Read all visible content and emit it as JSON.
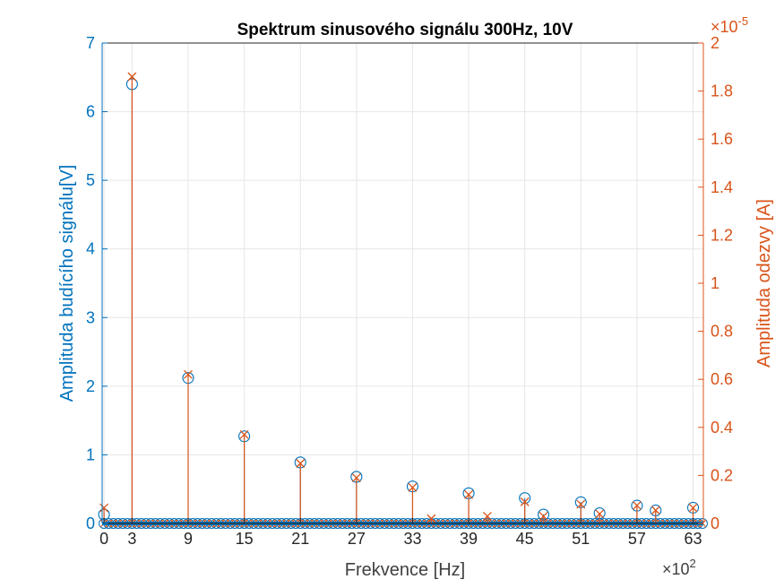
{
  "chart_data": {
    "type": "stem",
    "title": "Spektrum sinusového signálu 300Hz, 10V",
    "xlabel": "Frekvence [Hz]",
    "x_multiplier": {
      "base": "×10",
      "exponent": "2"
    },
    "xlim": [
      -0.2,
      64.1
    ],
    "xticks": [
      0,
      3,
      9,
      15,
      21,
      27,
      33,
      39,
      45,
      51,
      57,
      63
    ],
    "grid": true,
    "left_axis": {
      "label": "Amplituda budícího signálu[V]",
      "color": "#0072BD",
      "ylim": [
        0,
        7
      ],
      "ticks": [
        0,
        1,
        2,
        3,
        4,
        5,
        6,
        7
      ]
    },
    "right_axis": {
      "label": "Amplituda odezvy [A]",
      "color": "#D95319",
      "multiplier": {
        "base": "×10",
        "exponent": "-5"
      },
      "ylim": [
        0,
        2
      ],
      "ticks": [
        0,
        0.2,
        0.4,
        0.6,
        0.8,
        1,
        1.2,
        1.4,
        1.6,
        1.8,
        2
      ],
      "tick_labels": [
        "0",
        "0.2",
        "0.4",
        "0.6",
        "0.8",
        "1",
        "1.2",
        "1.4",
        "1.6",
        "1.8",
        "2"
      ]
    },
    "series": [
      {
        "axis": "left",
        "marker": "circle",
        "color": "#0072BD",
        "x": [
          0,
          3,
          9,
          15,
          21,
          27,
          33,
          39,
          45,
          47,
          51,
          53,
          57,
          59,
          63
        ],
        "y": [
          0.13,
          6.4,
          2.12,
          1.27,
          0.89,
          0.68,
          0.54,
          0.44,
          0.37,
          0.13,
          0.31,
          0.15,
          0.26,
          0.19,
          0.23
        ],
        "baseline_markers": true
      },
      {
        "axis": "right",
        "marker": "x",
        "color": "#D95319",
        "x": [
          0,
          3,
          9,
          15,
          21,
          27,
          33,
          35,
          39,
          41,
          45,
          47,
          51,
          53,
          57,
          59,
          63
        ],
        "y": [
          0.065,
          1.86,
          0.62,
          0.37,
          0.25,
          0.19,
          0.15,
          0.02,
          0.12,
          0.03,
          0.09,
          0.03,
          0.08,
          0.04,
          0.075,
          0.055,
          0.065
        ]
      }
    ]
  }
}
